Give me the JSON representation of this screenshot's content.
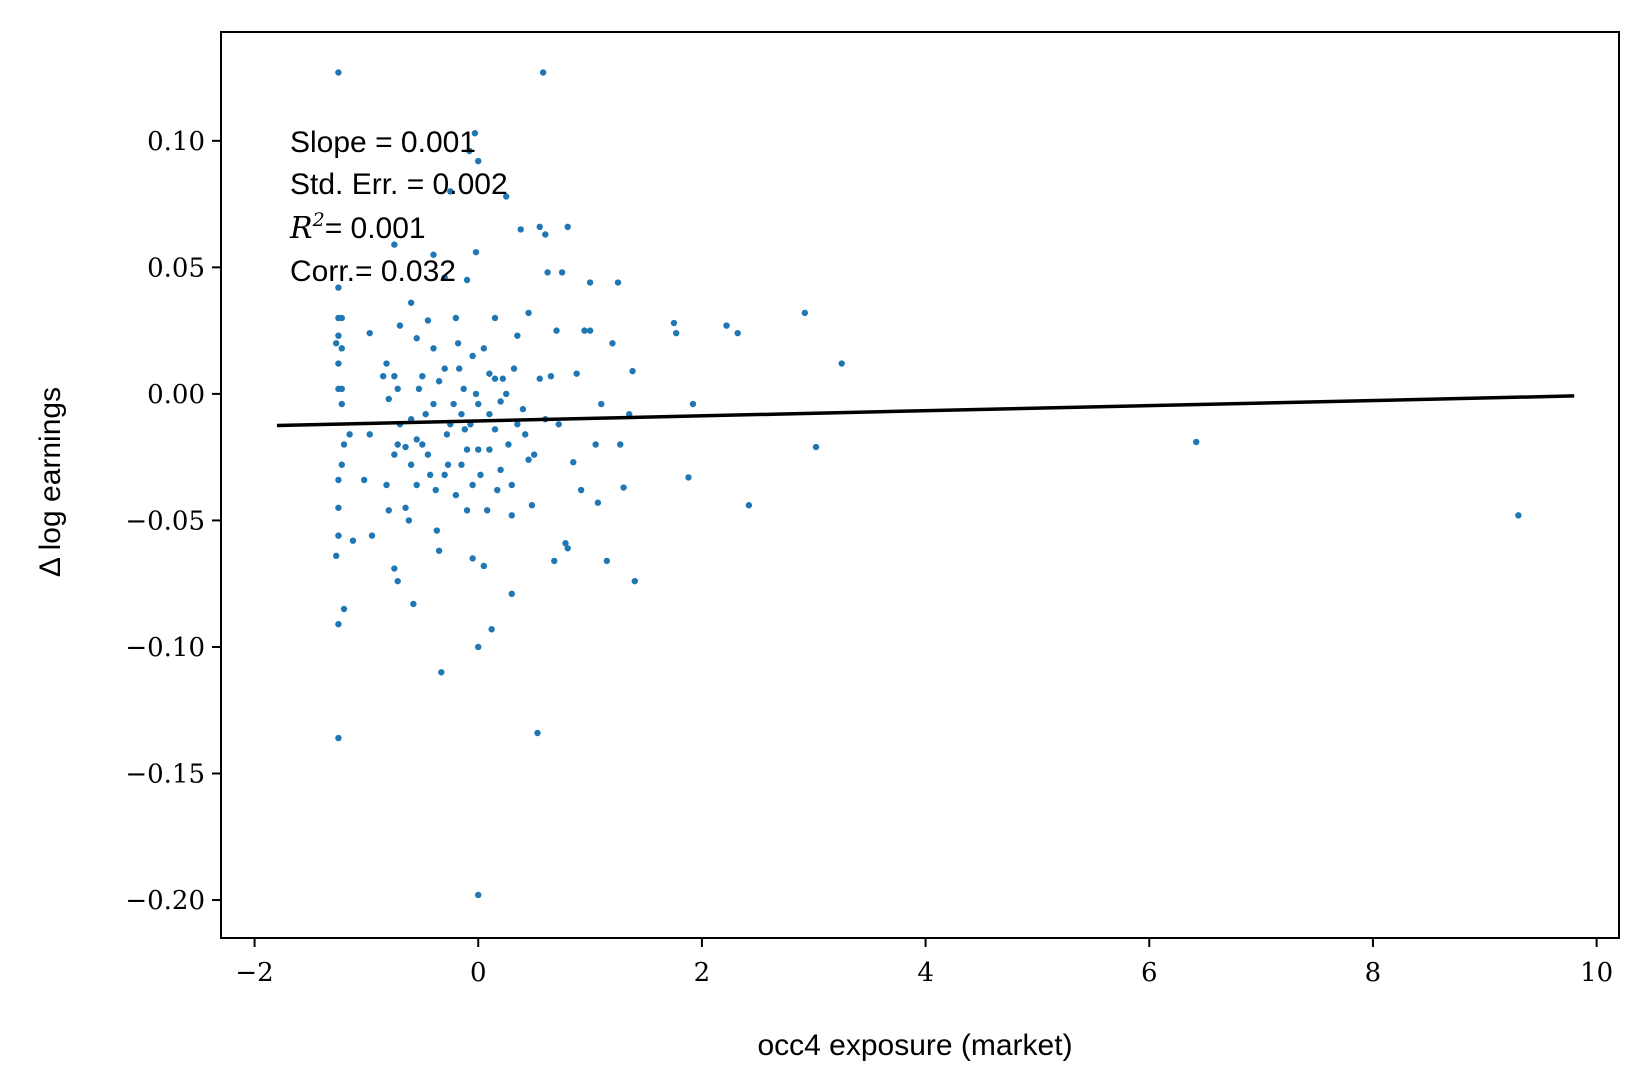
{
  "chart_data": {
    "type": "scatter",
    "xlabel": "occ4 exposure (market)",
    "ylabel": "Δ log earnings",
    "xlim": [
      -2.3,
      10.2
    ],
    "ylim": [
      -0.215,
      0.143
    ],
    "x_ticks": [
      -2,
      0,
      2,
      4,
      6,
      8,
      10
    ],
    "x_tick_labels": [
      "−2",
      "0",
      "2",
      "4",
      "6",
      "8",
      "10"
    ],
    "y_ticks": [
      0.1,
      0.05,
      0.0,
      -0.05,
      -0.1,
      -0.15,
      -0.2
    ],
    "y_tick_labels": [
      "0.10",
      "0.05",
      "0.00",
      "−0.05",
      "−0.10",
      "−0.15",
      "−0.20"
    ],
    "annotations": [
      "Slope = 0.001",
      "Std. Err. = 0.002",
      "= 0.001",
      "Corr.= 0.032"
    ],
    "annotation_r2_symbol": "R",
    "annotation_r2_exponent": "2",
    "fit_line": {
      "x": [
        -1.8,
        9.8
      ],
      "y": [
        -0.0125,
        -0.0008
      ]
    },
    "point_color": "#1f77b4",
    "line_color": "#000000",
    "grid": false,
    "points": [
      [
        -1.25,
        0.127
      ],
      [
        0.58,
        0.127
      ],
      [
        -1.25,
        0.042
      ],
      [
        -1.25,
        0.03
      ],
      [
        -1.22,
        0.03
      ],
      [
        -1.25,
        0.023
      ],
      [
        -1.27,
        0.02
      ],
      [
        -1.22,
        0.018
      ],
      [
        -1.25,
        0.012
      ],
      [
        -1.25,
        0.002
      ],
      [
        -1.22,
        0.002
      ],
      [
        -1.22,
        -0.004
      ],
      [
        -1.2,
        -0.02
      ],
      [
        -1.22,
        -0.028
      ],
      [
        -1.25,
        -0.034
      ],
      [
        -1.25,
        -0.045
      ],
      [
        -1.25,
        -0.056
      ],
      [
        -1.27,
        -0.064
      ],
      [
        -1.2,
        -0.085
      ],
      [
        -1.25,
        -0.091
      ],
      [
        -1.25,
        -0.136
      ],
      [
        -1.15,
        -0.016
      ],
      [
        -1.12,
        -0.058
      ],
      [
        -1.02,
        -0.034
      ],
      [
        -0.97,
        -0.016
      ],
      [
        -0.95,
        -0.056
      ],
      [
        -0.97,
        0.024
      ],
      [
        -0.85,
        0.007
      ],
      [
        -0.82,
        0.012
      ],
      [
        -0.8,
        -0.002
      ],
      [
        -0.82,
        -0.036
      ],
      [
        -0.8,
        -0.046
      ],
      [
        -0.75,
        -0.069
      ],
      [
        -0.72,
        -0.074
      ],
      [
        -0.75,
        -0.024
      ],
      [
        -0.72,
        -0.02
      ],
      [
        -0.7,
        -0.012
      ],
      [
        -0.75,
        0.059
      ],
      [
        -0.7,
        0.027
      ],
      [
        -0.75,
        0.007
      ],
      [
        -0.72,
        0.002
      ],
      [
        -0.65,
        -0.021
      ],
      [
        -0.65,
        -0.045
      ],
      [
        -0.62,
        -0.05
      ],
      [
        -0.6,
        -0.028
      ],
      [
        -0.58,
        -0.083
      ],
      [
        -0.55,
        -0.036
      ],
      [
        -0.55,
        -0.018
      ],
      [
        -0.53,
        0.002
      ],
      [
        -0.5,
        0.007
      ],
      [
        -0.5,
        -0.02
      ],
      [
        -0.45,
        0.029
      ],
      [
        -0.47,
        -0.008
      ],
      [
        -0.45,
        -0.024
      ],
      [
        -0.43,
        -0.032
      ],
      [
        -0.4,
        0.055
      ],
      [
        -0.4,
        0.018
      ],
      [
        -0.38,
        -0.038
      ],
      [
        -0.37,
        -0.054
      ],
      [
        -0.35,
        -0.062
      ],
      [
        -0.33,
        -0.11
      ],
      [
        -0.3,
        0.046
      ],
      [
        -0.3,
        0.01
      ],
      [
        -0.28,
        -0.016
      ],
      [
        -0.27,
        -0.028
      ],
      [
        -0.25,
        0.08
      ],
      [
        -0.22,
        -0.004
      ],
      [
        -0.2,
        -0.04
      ],
      [
        -0.18,
        0.02
      ],
      [
        -0.17,
        0.01
      ],
      [
        -0.15,
        -0.028
      ],
      [
        -0.13,
        0.002
      ],
      [
        -0.12,
        -0.014
      ],
      [
        -0.1,
        0.045
      ],
      [
        -0.1,
        -0.022
      ],
      [
        -0.08,
        0.096
      ],
      [
        -0.07,
        -0.012
      ],
      [
        -0.05,
        -0.036
      ],
      [
        -0.05,
        -0.065
      ],
      [
        -0.03,
        0.103
      ],
      [
        -0.02,
        0.056
      ],
      [
        -0.02,
        0.0
      ],
      [
        0.0,
        0.092
      ],
      [
        0.0,
        -0.004
      ],
      [
        0.0,
        -0.022
      ],
      [
        0.02,
        -0.032
      ],
      [
        0.0,
        -0.1
      ],
      [
        0.0,
        -0.198
      ],
      [
        0.05,
        -0.068
      ],
      [
        0.08,
        -0.046
      ],
      [
        0.1,
        0.008
      ],
      [
        0.12,
        -0.093
      ],
      [
        0.15,
        0.006
      ],
      [
        0.15,
        -0.014
      ],
      [
        0.17,
        -0.038
      ],
      [
        0.2,
        -0.03
      ],
      [
        0.22,
        0.006
      ],
      [
        0.25,
        0.078
      ],
      [
        0.25,
        0.0
      ],
      [
        0.27,
        -0.02
      ],
      [
        0.3,
        -0.079
      ],
      [
        0.3,
        -0.036
      ],
      [
        0.32,
        0.01
      ],
      [
        0.35,
        0.023
      ],
      [
        0.38,
        0.065
      ],
      [
        0.4,
        -0.006
      ],
      [
        0.42,
        -0.016
      ],
      [
        0.45,
        0.032
      ],
      [
        0.48,
        -0.044
      ],
      [
        0.5,
        -0.024
      ],
      [
        0.53,
        -0.134
      ],
      [
        0.55,
        0.066
      ],
      [
        0.6,
        0.063
      ],
      [
        0.62,
        0.048
      ],
      [
        0.65,
        0.007
      ],
      [
        0.68,
        -0.066
      ],
      [
        0.7,
        0.025
      ],
      [
        0.72,
        -0.012
      ],
      [
        0.75,
        0.048
      ],
      [
        0.78,
        -0.059
      ],
      [
        0.8,
        0.066
      ],
      [
        0.8,
        -0.061
      ],
      [
        0.85,
        -0.027
      ],
      [
        0.88,
        0.008
      ],
      [
        0.92,
        -0.038
      ],
      [
        0.95,
        0.025
      ],
      [
        1.0,
        0.025
      ],
      [
        1.0,
        0.044
      ],
      [
        1.05,
        -0.02
      ],
      [
        1.07,
        -0.043
      ],
      [
        1.1,
        -0.004
      ],
      [
        1.15,
        -0.066
      ],
      [
        1.2,
        0.02
      ],
      [
        1.25,
        0.044
      ],
      [
        1.27,
        -0.02
      ],
      [
        1.3,
        -0.037
      ],
      [
        1.35,
        -0.008
      ],
      [
        1.38,
        0.009
      ],
      [
        1.4,
        -0.074
      ],
      [
        1.75,
        0.028
      ],
      [
        1.77,
        0.024
      ],
      [
        1.88,
        -0.033
      ],
      [
        1.92,
        -0.004
      ],
      [
        2.22,
        0.027
      ],
      [
        2.32,
        0.024
      ],
      [
        2.42,
        -0.044
      ],
      [
        2.92,
        0.032
      ],
      [
        3.02,
        -0.021
      ],
      [
        3.25,
        0.012
      ],
      [
        6.42,
        -0.019
      ],
      [
        9.3,
        -0.048
      ],
      [
        -0.6,
        0.036
      ],
      [
        -0.55,
        0.022
      ],
      [
        -0.3,
        -0.032
      ],
      [
        -0.25,
        -0.012
      ],
      [
        0.05,
        0.018
      ],
      [
        0.1,
        -0.022
      ],
      [
        0.35,
        -0.012
      ],
      [
        -0.15,
        -0.008
      ],
      [
        0.2,
        -0.003
      ],
      [
        -0.4,
        -0.004
      ],
      [
        0.45,
        -0.026
      ],
      [
        -0.1,
        -0.046
      ],
      [
        0.3,
        -0.048
      ],
      [
        -0.6,
        -0.01
      ],
      [
        0.6,
        -0.01
      ],
      [
        -0.2,
        0.03
      ],
      [
        0.15,
        0.03
      ],
      [
        -0.05,
        0.015
      ],
      [
        0.1,
        -0.008
      ],
      [
        -0.35,
        0.005
      ],
      [
        0.55,
        0.006
      ]
    ]
  }
}
